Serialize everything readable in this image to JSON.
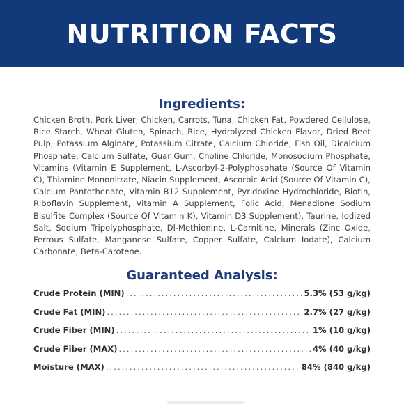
{
  "header": {
    "title": "NUTRITION FACTS"
  },
  "ingredients": {
    "title": "Ingredients:",
    "text": "Chicken Broth, Pork Liver, Chicken, Carrots, Tuna, Chicken Fat, Powdered Cellulose, Rice Starch, Wheat Gluten, Spinach, Rice, Hydrolyzed Chicken Flavor, Dried Beet Pulp, Potassium Alginate, Potassium Citrate, Calcium Chloride, Fish Oil, Dicalcium Phosphate, Calcium Sulfate, Guar Gum, Choline Chloride, Monosodium Phosphate, Vitamins (Vitamin E Supplement, L-Ascorbyl-2-Polyphosphate (Source Of Vitamin C), Thiamine Mononitrate, Niacin Supplement, Ascorbic Acid (Source Of Vitamin C), Calcium Pantothenate, Vitamin B12 Supplement, Pyridoxine Hydrochloride, Biotin, Riboflavin Supplement, Vitamin A Supplement, Folic Acid, Menadione Sodium Bisulfite Complex (Source Of Vitamin K), Vitamin D3 Supplement), Taurine, Iodized Salt, Sodium Tripolyphosphate, Dl-Methionine, L-Carnitine, Minerals (Zinc Oxide, Ferrous Sulfate, Manganese Sulfate, Copper Sulfate, Calcium Iodate), Calcium Carbonate, Beta-Carotene."
  },
  "analysis": {
    "title": "Guaranteed Analysis:",
    "rows": [
      {
        "label": "Crude Protein (MIN)",
        "value": "5.3% (53 g/kg)"
      },
      {
        "label": "Crude Fat (MIN)",
        "value": "2.7% (27 g/kg)"
      },
      {
        "label": "Crude Fiber (MIN)",
        "value": "1% (10 g/kg)"
      },
      {
        "label": "Crude Fiber (MAX)",
        "value": "4% (40 g/kg)"
      },
      {
        "label": "Moisture (MAX)",
        "value": "84% (840 g/kg)"
      }
    ]
  },
  "colors": {
    "banner": "#123a7a",
    "heading": "#1f3d7a",
    "text": "#3f3f3f"
  }
}
